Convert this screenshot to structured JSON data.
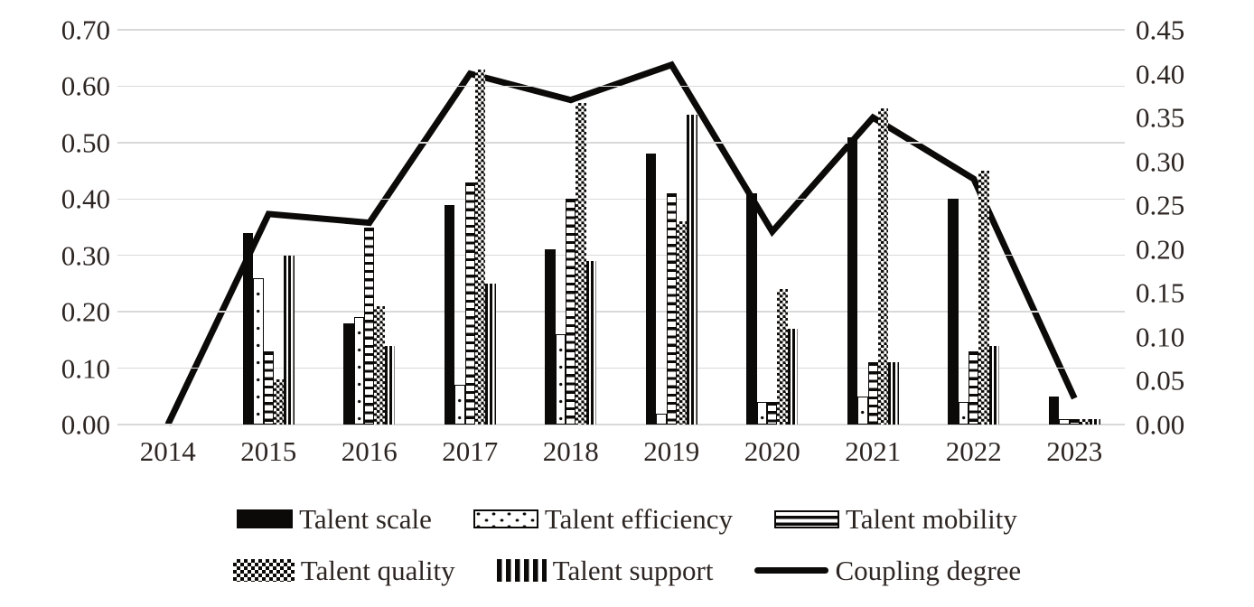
{
  "page": {
    "background": "#ffffff"
  },
  "colors": {
    "ink": "#0c0a08",
    "text": "#2c2522",
    "gridline": "#d9d9d9"
  },
  "chart_data": {
    "type": "combo-bar-line",
    "categories": [
      "2014",
      "2015",
      "2016",
      "2017",
      "2018",
      "2019",
      "2020",
      "2021",
      "2022",
      "2023"
    ],
    "left_axis": {
      "min": 0,
      "max": 0.7,
      "step": 0.1,
      "ticks": [
        "0.70",
        "0.60",
        "0.50",
        "0.40",
        "0.30",
        "0.20",
        "0.10",
        "0.00"
      ]
    },
    "right_axis": {
      "min": 0,
      "max": 0.45,
      "step": 0.05,
      "ticks": [
        "0.45",
        "0.40",
        "0.35",
        "0.30",
        "0.25",
        "0.20",
        "0.15",
        "0.10",
        "0.05",
        "0.00"
      ]
    },
    "grid": true,
    "legend_position": "bottom",
    "series": [
      {
        "name": "Talent scale",
        "type": "bar",
        "axis": "left",
        "pattern": "solid",
        "values": [
          0,
          0.34,
          0.18,
          0.39,
          0.31,
          0.48,
          0.41,
          0.51,
          0.4,
          0.05
        ]
      },
      {
        "name": "Talent efficiency",
        "type": "bar",
        "axis": "left",
        "pattern": "dots",
        "values": [
          0,
          0.26,
          0.19,
          0.07,
          0.16,
          0.02,
          0.04,
          0.05,
          0.04,
          0.01
        ]
      },
      {
        "name": "Talent mobility",
        "type": "bar",
        "axis": "left",
        "pattern": "horizontal-stripes",
        "values": [
          0,
          0.13,
          0.35,
          0.43,
          0.4,
          0.41,
          0.04,
          0.11,
          0.13,
          0.01
        ]
      },
      {
        "name": "Talent quality",
        "type": "bar",
        "axis": "left",
        "pattern": "checkerboard",
        "values": [
          0,
          0.08,
          0.21,
          0.63,
          0.57,
          0.36,
          0.24,
          0.56,
          0.45,
          0.01
        ]
      },
      {
        "name": "Talent support",
        "type": "bar",
        "axis": "left",
        "pattern": "vertical-stripes",
        "values": [
          0,
          0.3,
          0.14,
          0.25,
          0.29,
          0.55,
          0.17,
          0.11,
          0.14,
          0.01
        ]
      },
      {
        "name": "Coupling degree",
        "type": "line",
        "axis": "right",
        "pattern": "thick-line",
        "values": [
          0,
          0.24,
          0.23,
          0.4,
          0.37,
          0.41,
          0.22,
          0.35,
          0.28,
          0.03
        ]
      }
    ]
  },
  "legend": {
    "rows": [
      [
        0,
        1,
        2
      ],
      [
        3,
        4,
        5
      ]
    ]
  }
}
